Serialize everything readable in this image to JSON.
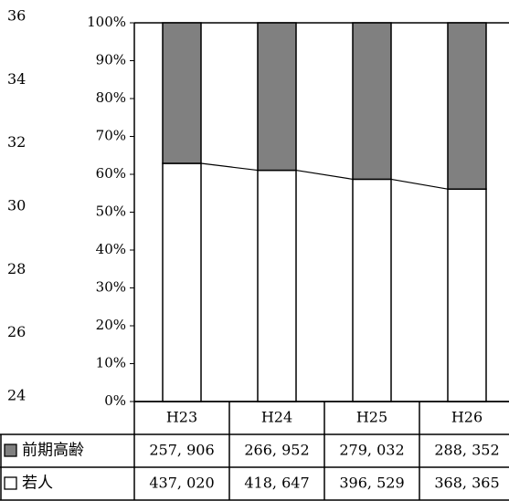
{
  "chart_data": {
    "type": "bar",
    "stacked": "percent",
    "categories": [
      "H23",
      "H24",
      "H25",
      "H26"
    ],
    "series": [
      {
        "name": "前期高齢",
        "values": [
          257906,
          266952,
          279032,
          288352
        ],
        "color": "#808080",
        "marker": "■"
      },
      {
        "name": "若人",
        "values": [
          437020,
          418647,
          396529,
          368365
        ],
        "color": "#ffffff",
        "marker": "□"
      }
    ],
    "y_left_ticks": [
      "0%",
      "10%",
      "20%",
      "30%",
      "40%",
      "50%",
      "60%",
      "70%",
      "80%",
      "90%",
      "100%"
    ],
    "y_left_range": [
      0,
      100
    ],
    "y_secondary_ticks": [
      "24",
      "26",
      "28",
      "30",
      "32",
      "34",
      "36"
    ],
    "y_secondary_range": [
      24,
      36
    ],
    "data_table": true,
    "grid": false,
    "legend": "in data table"
  }
}
